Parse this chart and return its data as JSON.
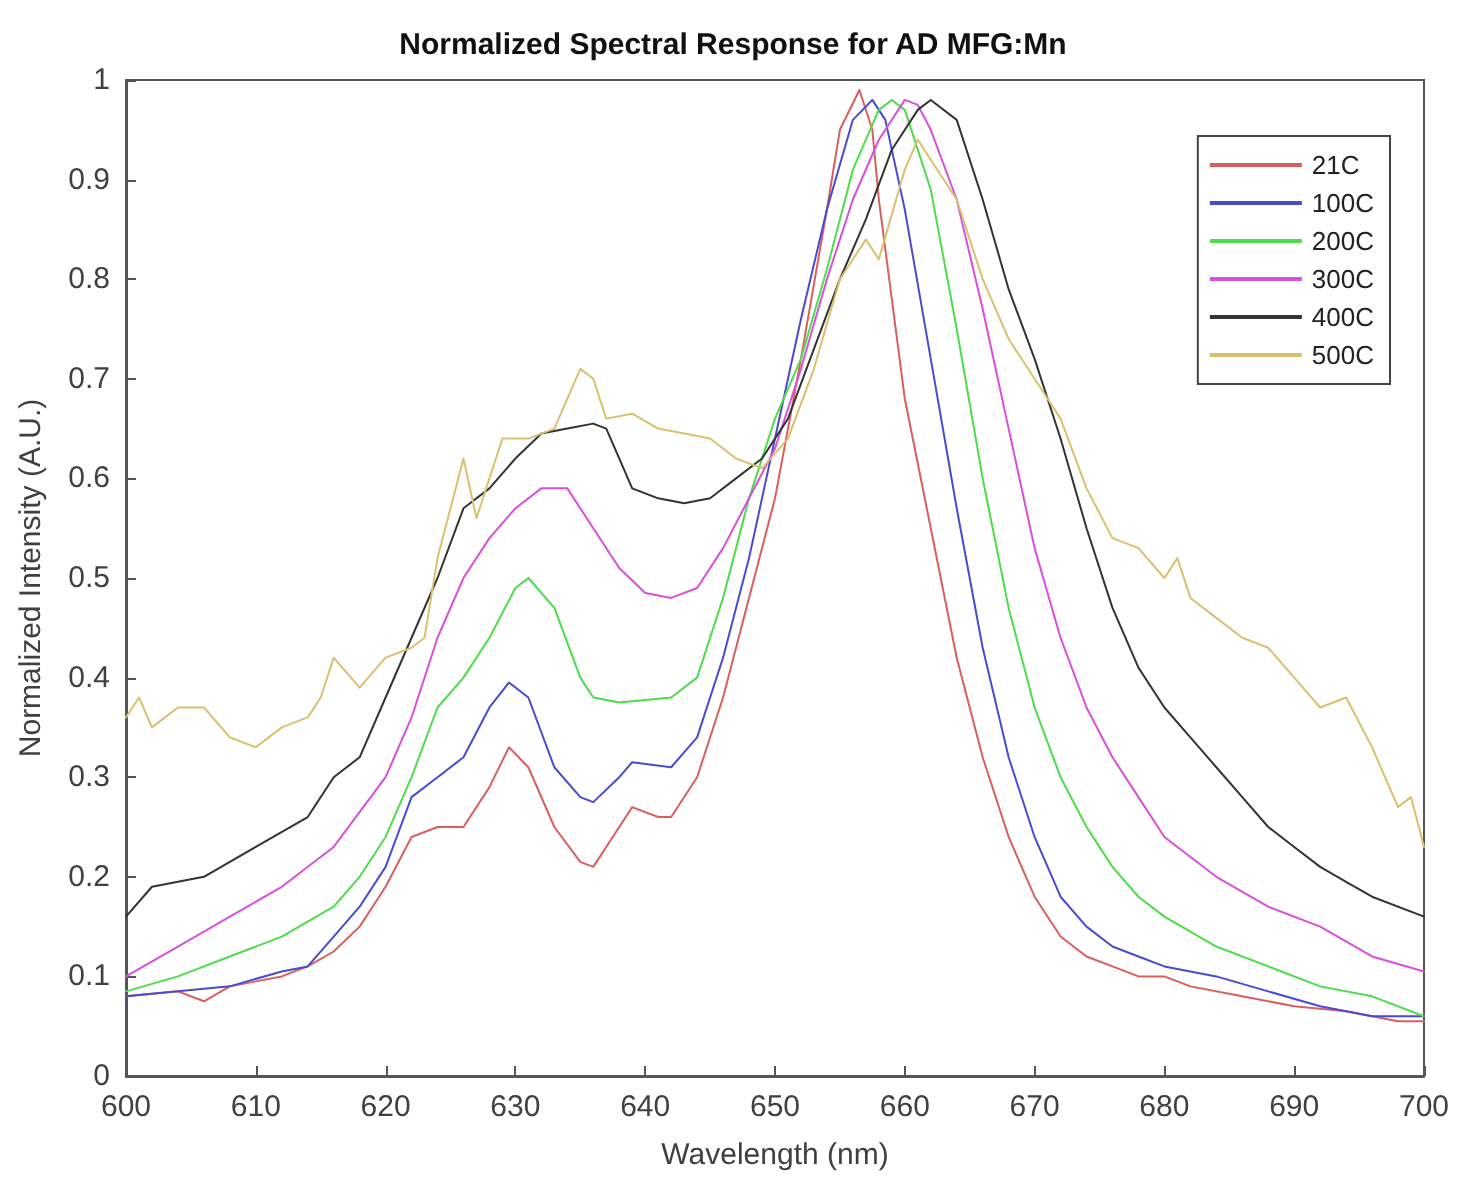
{
  "chart_data": {
    "type": "line",
    "title": "Normalized Spectral Response for AD MFG:Mn",
    "xlabel": "Wavelength (nm)",
    "ylabel": "Normalized Intensity (A.U.)",
    "xlim": [
      600,
      700
    ],
    "xticks": [
      600,
      610,
      620,
      630,
      640,
      650,
      660,
      670,
      680,
      690,
      700
    ],
    "ylim": [
      0,
      1
    ],
    "yticks": [
      0,
      0.1,
      0.2,
      0.3,
      0.4,
      0.5,
      0.6,
      0.7,
      0.8,
      0.9,
      1
    ],
    "grid": false,
    "legend": "top right",
    "marker": "none",
    "line_style": "solid",
    "series": [
      {
        "name": "21C",
        "color": "#d95f5f",
        "x": [
          600,
          604,
          606,
          608,
          610,
          612,
          614,
          616,
          618,
          620,
          622,
          624,
          626,
          628,
          629.5,
          631,
          633,
          635,
          636,
          638,
          639,
          641,
          642,
          644,
          646,
          648,
          650,
          652,
          654,
          655,
          656.5,
          657.5,
          658,
          659,
          660,
          662,
          664,
          666,
          668,
          670,
          672,
          674,
          676,
          678,
          680,
          682,
          686,
          690,
          694,
          698,
          700
        ],
        "values": [
          0.08,
          0.085,
          0.075,
          0.09,
          0.095,
          0.1,
          0.11,
          0.125,
          0.15,
          0.19,
          0.24,
          0.25,
          0.25,
          0.29,
          0.33,
          0.31,
          0.25,
          0.215,
          0.21,
          0.25,
          0.27,
          0.26,
          0.26,
          0.3,
          0.38,
          0.48,
          0.58,
          0.72,
          0.87,
          0.95,
          0.99,
          0.95,
          0.88,
          0.78,
          0.68,
          0.55,
          0.42,
          0.32,
          0.24,
          0.18,
          0.14,
          0.12,
          0.11,
          0.1,
          0.1,
          0.09,
          0.08,
          0.07,
          0.065,
          0.055,
          0.055
        ]
      },
      {
        "name": "100C",
        "color": "#4a4ad0",
        "x": [
          600,
          604,
          608,
          612,
          614,
          616,
          618,
          620,
          622,
          624,
          626,
          628,
          629.5,
          631,
          633,
          635,
          636,
          638,
          639,
          642,
          644,
          646,
          648,
          650,
          652,
          654,
          656,
          657.5,
          658.5,
          660,
          662,
          664,
          666,
          668,
          670,
          672,
          674,
          676,
          678,
          680,
          684,
          688,
          692,
          696,
          700
        ],
        "values": [
          0.08,
          0.085,
          0.09,
          0.105,
          0.11,
          0.14,
          0.17,
          0.21,
          0.28,
          0.3,
          0.32,
          0.37,
          0.395,
          0.38,
          0.31,
          0.28,
          0.275,
          0.3,
          0.315,
          0.31,
          0.34,
          0.42,
          0.52,
          0.64,
          0.76,
          0.87,
          0.96,
          0.98,
          0.96,
          0.87,
          0.72,
          0.57,
          0.43,
          0.32,
          0.24,
          0.18,
          0.15,
          0.13,
          0.12,
          0.11,
          0.1,
          0.085,
          0.07,
          0.06,
          0.06
        ]
      },
      {
        "name": "200C",
        "color": "#4cdc4c",
        "x": [
          600,
          604,
          608,
          612,
          616,
          618,
          620,
          622,
          624,
          626,
          628,
          630,
          631,
          633,
          635,
          636,
          638,
          642,
          644,
          646,
          648,
          650,
          652,
          654,
          656,
          658,
          659,
          660,
          662,
          664,
          666,
          668,
          670,
          672,
          674,
          676,
          678,
          680,
          684,
          688,
          692,
          696,
          700
        ],
        "values": [
          0.085,
          0.1,
          0.12,
          0.14,
          0.17,
          0.2,
          0.24,
          0.3,
          0.37,
          0.4,
          0.44,
          0.49,
          0.5,
          0.47,
          0.4,
          0.38,
          0.375,
          0.38,
          0.4,
          0.48,
          0.58,
          0.66,
          0.72,
          0.81,
          0.91,
          0.97,
          0.98,
          0.97,
          0.89,
          0.75,
          0.6,
          0.47,
          0.37,
          0.3,
          0.25,
          0.21,
          0.18,
          0.16,
          0.13,
          0.11,
          0.09,
          0.08,
          0.06
        ]
      },
      {
        "name": "300C",
        "color": "#d94fd9",
        "x": [
          600,
          604,
          608,
          612,
          616,
          620,
          622,
          624,
          626,
          628,
          630,
          632,
          634,
          636,
          638,
          640,
          642,
          644,
          646,
          648,
          650,
          652,
          654,
          656,
          658,
          660,
          661,
          662,
          664,
          666,
          668,
          670,
          672,
          674,
          676,
          678,
          680,
          684,
          688,
          692,
          696,
          700
        ],
        "values": [
          0.1,
          0.13,
          0.16,
          0.19,
          0.23,
          0.3,
          0.36,
          0.44,
          0.5,
          0.54,
          0.57,
          0.59,
          0.59,
          0.55,
          0.51,
          0.485,
          0.48,
          0.49,
          0.53,
          0.58,
          0.63,
          0.71,
          0.8,
          0.88,
          0.94,
          0.98,
          0.975,
          0.95,
          0.88,
          0.77,
          0.65,
          0.53,
          0.44,
          0.37,
          0.32,
          0.28,
          0.24,
          0.2,
          0.17,
          0.15,
          0.12,
          0.105
        ]
      },
      {
        "name": "400C",
        "color": "#333333",
        "x": [
          600,
          602,
          606,
          610,
          614,
          616,
          618,
          620,
          622,
          624,
          626,
          628,
          630,
          632,
          634,
          636,
          637,
          639,
          641,
          643,
          645,
          647,
          649,
          651,
          653,
          655,
          657,
          659,
          661,
          662,
          664,
          666,
          668,
          670,
          672,
          674,
          676,
          678,
          680,
          682,
          684,
          686,
          688,
          690,
          692,
          694,
          696,
          700
        ],
        "values": [
          0.16,
          0.19,
          0.2,
          0.23,
          0.26,
          0.3,
          0.32,
          0.38,
          0.44,
          0.5,
          0.57,
          0.59,
          0.62,
          0.645,
          0.65,
          0.655,
          0.65,
          0.59,
          0.58,
          0.575,
          0.58,
          0.6,
          0.62,
          0.66,
          0.73,
          0.8,
          0.86,
          0.93,
          0.97,
          0.98,
          0.96,
          0.88,
          0.79,
          0.72,
          0.64,
          0.55,
          0.47,
          0.41,
          0.37,
          0.34,
          0.31,
          0.28,
          0.25,
          0.23,
          0.21,
          0.195,
          0.18,
          0.16
        ]
      },
      {
        "name": "500C",
        "color": "#d9c070",
        "x": [
          600,
          601,
          602,
          604,
          606,
          608,
          610,
          612,
          614,
          615,
          616,
          618,
          620,
          622,
          623,
          624,
          625,
          626,
          627,
          629,
          631,
          633,
          635,
          636,
          637,
          639,
          641,
          643,
          645,
          647,
          649,
          651,
          653,
          655,
          657,
          658,
          660,
          661,
          662,
          664,
          666,
          668,
          670,
          672,
          674,
          676,
          678,
          680,
          681,
          682,
          684,
          686,
          688,
          690,
          692,
          694,
          696,
          698,
          699,
          700
        ],
        "values": [
          0.36,
          0.38,
          0.35,
          0.37,
          0.37,
          0.34,
          0.33,
          0.35,
          0.36,
          0.38,
          0.42,
          0.39,
          0.42,
          0.43,
          0.44,
          0.52,
          0.57,
          0.62,
          0.56,
          0.64,
          0.64,
          0.65,
          0.71,
          0.7,
          0.66,
          0.665,
          0.65,
          0.645,
          0.64,
          0.62,
          0.61,
          0.64,
          0.71,
          0.8,
          0.84,
          0.82,
          0.91,
          0.94,
          0.92,
          0.88,
          0.8,
          0.74,
          0.7,
          0.66,
          0.59,
          0.54,
          0.53,
          0.5,
          0.52,
          0.48,
          0.46,
          0.44,
          0.43,
          0.4,
          0.37,
          0.38,
          0.33,
          0.27,
          0.28,
          0.23
        ]
      }
    ]
  }
}
